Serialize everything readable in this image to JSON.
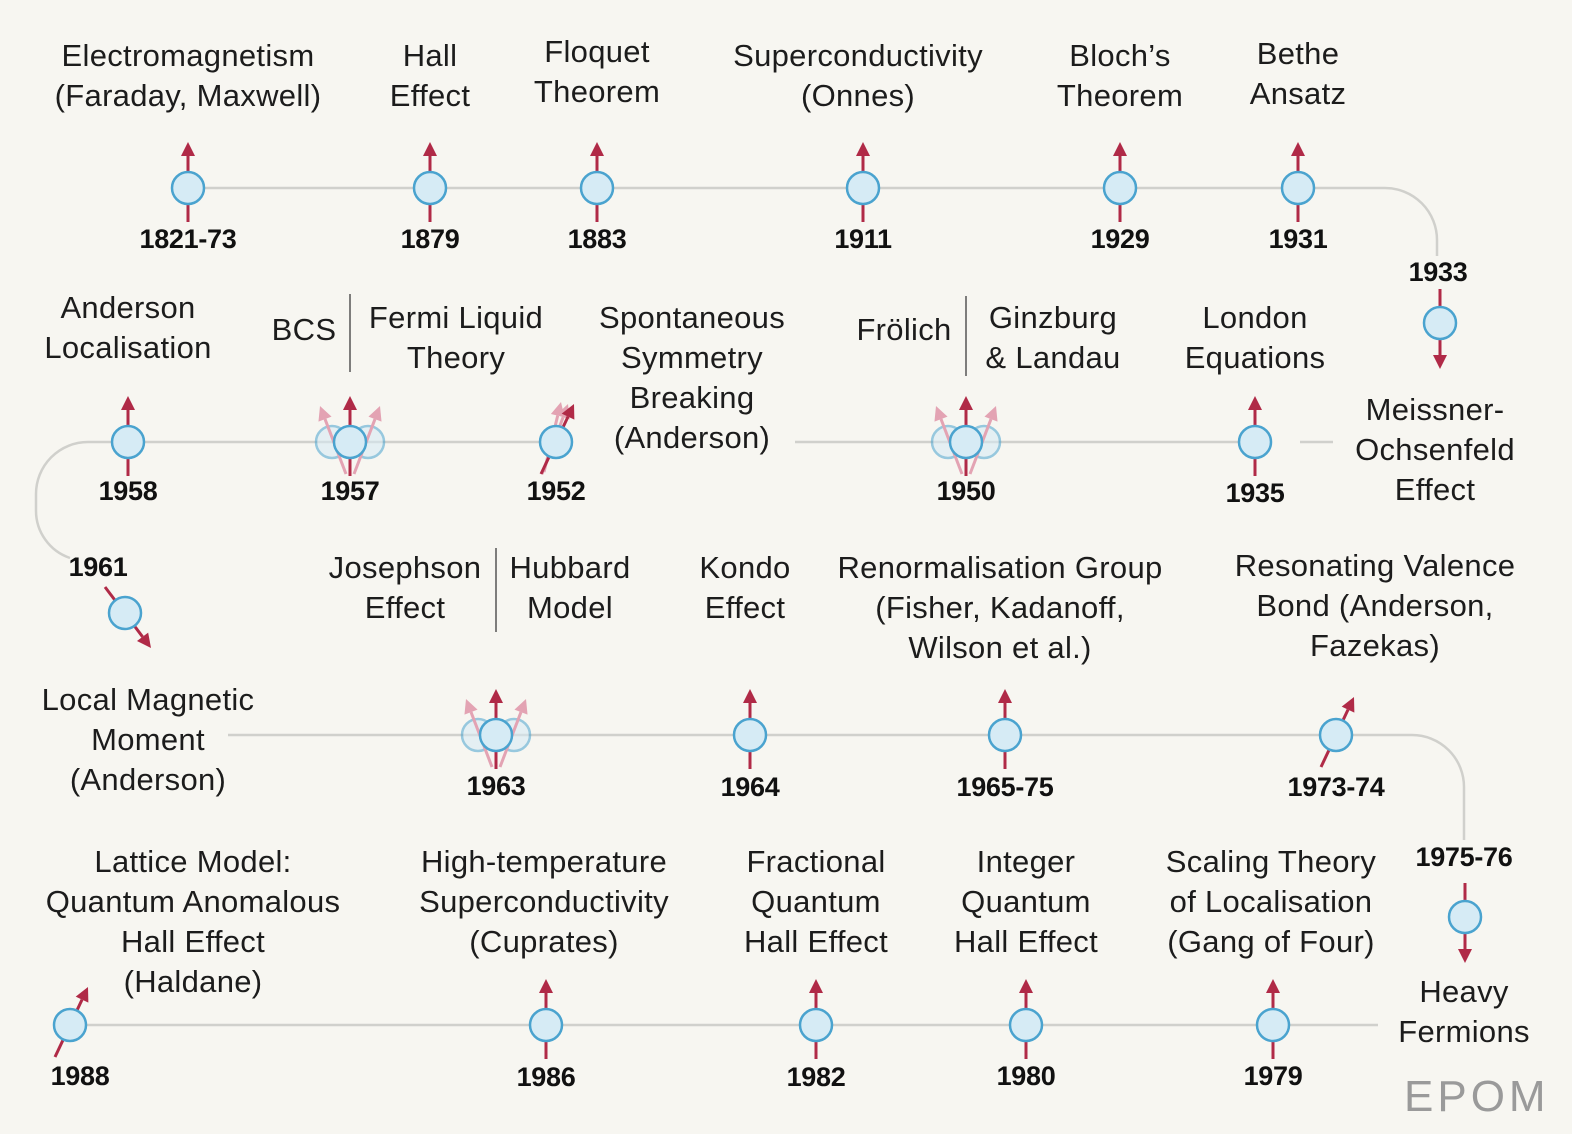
{
  "colors": {
    "background": "#f7f6f1",
    "line": "#d0d0cc",
    "arrow": "#b02a47",
    "arrow_faded": "#e3a3b3",
    "node_fill": "#d6ebf5",
    "node_stroke": "#4aa3cf",
    "text": "#1c1c1c",
    "logo": "#9a9a9a"
  },
  "logo": "EPOM",
  "events": [
    {
      "year": "1821-73",
      "label": "Electromagnetism\n(Faraday, Maxwell)",
      "spin": "up"
    },
    {
      "year": "1879",
      "label": "Hall\nEffect",
      "spin": "up"
    },
    {
      "year": "1883",
      "label": "Floquet\nTheorem",
      "spin": "up"
    },
    {
      "year": "1911",
      "label": "Superconductivity\n(Onnes)",
      "spin": "up"
    },
    {
      "year": "1929",
      "label": "Bloch’s\nTheorem",
      "spin": "up"
    },
    {
      "year": "1931",
      "label": "Bethe\nAnsatz",
      "spin": "up"
    },
    {
      "year": "1933",
      "label": "Meissner-\nOchsenfeld\nEffect",
      "spin": "down"
    },
    {
      "year": "1935",
      "label": "London\nEquations",
      "spin": "up"
    },
    {
      "year": "1950",
      "label_left": "Frölich",
      "label_right": "Ginzburg\n& Landau",
      "spin": "triple"
    },
    {
      "year": "1952",
      "label": "Spontaneous\nSymmetry\nBreaking\n(Anderson)",
      "spin": "tilted"
    },
    {
      "year": "1957",
      "label_left": "BCS",
      "label_right": "Fermi Liquid\nTheory",
      "spin": "triple"
    },
    {
      "year": "1958",
      "label": "Anderson\nLocalisation",
      "spin": "up"
    },
    {
      "year": "1961",
      "label": "Local Magnetic\nMoment\n(Anderson)",
      "spin": "diagonal-down"
    },
    {
      "year": "1963",
      "label_left": "Josephson\nEffect",
      "label_right": "Hubbard\nModel",
      "spin": "triple"
    },
    {
      "year": "1964",
      "label": "Kondo\nEffect",
      "spin": "up"
    },
    {
      "year": "1965-75",
      "label": "Renormalisation Group\n(Fisher, Kadanoff,\nWilson et al.)",
      "spin": "up"
    },
    {
      "year": "1973-74",
      "label": "Resonating Valence\nBond (Anderson,\nFazekas)",
      "spin": "tilted"
    },
    {
      "year": "1975-76",
      "label": "Heavy\nFermions",
      "spin": "down"
    },
    {
      "year": "1979",
      "label": "Scaling Theory\nof Localisation\n(Gang of Four)",
      "spin": "up"
    },
    {
      "year": "1980",
      "label": "Integer\nQuantum\nHall Effect",
      "spin": "up"
    },
    {
      "year": "1982",
      "label": "Fractional\nQuantum\nHall Effect",
      "spin": "up"
    },
    {
      "year": "1986",
      "label": "High-temperature\nSuperconductivity\n(Cuprates)",
      "spin": "up"
    },
    {
      "year": "1988",
      "label": "Lattice Model:\nQuantum Anomalous\nHall Effect\n(Haldane)",
      "spin": "tilted"
    }
  ]
}
